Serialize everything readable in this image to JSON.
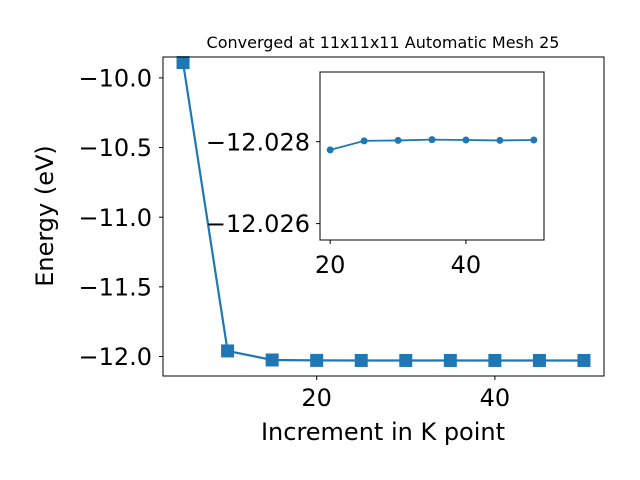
{
  "chart_data": [
    {
      "type": "line",
      "title": "Converged at 11x11x11 Automatic Mesh 25",
      "xlabel": "Increment in K point",
      "ylabel": "Energy (eV)",
      "xlim": [
        2.75,
        52.25
      ],
      "ylim": [
        -12.14,
        -9.85
      ],
      "x_ticks": [
        20,
        40
      ],
      "x_tick_labels": [
        "20",
        "40"
      ],
      "y_ticks": [
        -10.0,
        -10.5,
        -11.0,
        -11.5,
        -12.0
      ],
      "y_tick_labels": [
        "−10.0",
        "−10.5",
        "−11.0",
        "−11.5",
        "−12.0"
      ],
      "marker": "square",
      "color": "#1f77b4",
      "grid": false,
      "series": [
        {
          "x": [
            5,
            10,
            15,
            20,
            25,
            30,
            35,
            40,
            45,
            50
          ],
          "values": [
            -9.89,
            -11.96,
            -12.025,
            -12.028,
            -12.0285,
            -12.0285,
            -12.0285,
            -12.0285,
            -12.0285,
            -12.0285
          ]
        }
      ]
    },
    {
      "type": "line",
      "title": "",
      "xlabel": "",
      "ylabel": "",
      "xlim": [
        18.5,
        51.5
      ],
      "ylim": [
        -12.0256,
        -12.0297
      ],
      "y_inverted": true,
      "x_ticks": [
        20,
        40
      ],
      "x_tick_labels": [
        "20",
        "40"
      ],
      "y_ticks": [
        -12.028,
        -12.026
      ],
      "y_tick_labels": [
        "−12.028",
        "−12.026"
      ],
      "marker": "circle",
      "color": "#1f77b4",
      "grid": false,
      "series": [
        {
          "x": [
            20,
            25,
            30,
            35,
            40,
            45,
            50
          ],
          "values": [
            -12.0278,
            -12.02802,
            -12.02803,
            -12.02805,
            -12.02804,
            -12.02803,
            -12.02804
          ]
        }
      ]
    }
  ]
}
